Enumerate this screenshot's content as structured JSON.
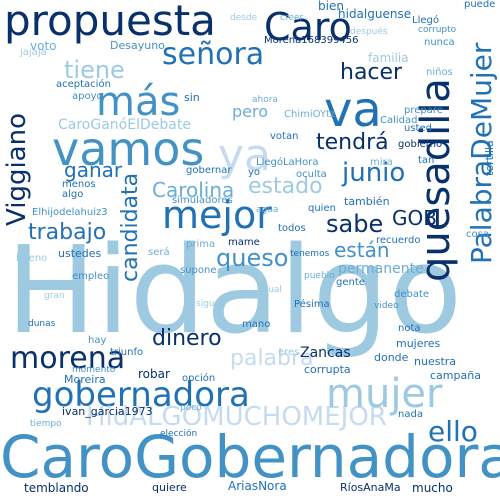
{
  "palette": {
    "darkest": "#08306b",
    "dark": "#0b4f8c",
    "mid": "#2171b5",
    "medium": "#4292c6",
    "light": "#6baed6",
    "lighter": "#9ecae1",
    "pale": "#c6dbef"
  },
  "words": {
    "hidalgo": "Hidalgo",
    "carogobernadora": "CaroGobernadora",
    "propuesta": "propuesta",
    "vamos": "vamos",
    "caro": "Caro",
    "va": "va",
    "ya": "ya",
    "senora": "señora",
    "mas": "más",
    "mejor": "mejor",
    "quesadilla": "quesadilla",
    "palabradeMujer": "PalabraDeMujer",
    "gobernadora": "gobernadora",
    "hidalgomuchomejor": "HidALGOMUCHOMEJOR",
    "mujer": "mujer",
    "morena": "morena",
    "hacer": "hacer",
    "tendra": "tendrá",
    "sabe": "sabe",
    "junio": "junio",
    "estado": "estado",
    "trabajo": "trabajo",
    "queso": "queso",
    "carolina": "Carolina",
    "candidata": "candidata",
    "viggiano": "Viggiano",
    "ganar": "ganar",
    "dinero": "dinero",
    "palabra": "palabra",
    "ello": "ello",
    "gob": "GOB",
    "estan": "están",
    "tiene": "tiene",
    "elhijodelahuiz3": "Elhijodelahuiz3",
    "caroganoeldebate": "CaroGanóElDebate",
    "permanente": "permanente",
    "temblando": "temblando",
    "mucho": "mucho",
    "ariasnora": "AriasNora",
    "riosananma": "RíosAnaMa",
    "ivan_garcia1973": "ivan_garcia1973",
    "hidalguense": "hidalguense",
    "bien": "bien",
    "morena168": "Morena168399456",
    "desayuno": "Desayuno",
    "voto": "voto",
    "pero": "pero",
    "familia": "familia",
    "chimiotyt": "ChimiOYtz",
    "llegolahora": "LlegóLaHora",
    "zancas": "Zancas",
    "nada": "nada",
    "todos": "todos",
    "tambien": "también",
    "menos": "menos",
    "robar": "robar",
    "dunas": "dunas",
    "mujeres": "mujeres",
    "campana": "campaña",
    "nuestra": "nuestra",
    "donde": "donde",
    "gente": "gente",
    "debate": "debate",
    "prepare": "prepare",
    "recuerdo": "recuerdo",
    "empleo": "empleo",
    "mano": "mano",
    "opcion": "opción",
    "triunfo": "triunfo",
    "quiere": "quiere",
    "moreira": "Moreira",
    "gobernar": "gobernar",
    "acepcion": "aceptación",
    "simuladores": "simuladores",
    "quien": "quien",
    "llego": "Llegó",
    "calidad": "Calidad",
    "pesima": "Pésima",
    "corrupta": "corrupta",
    "mame": "mame",
    "usted": "usted",
    "apoyo": "apoyo",
    "nunca": "nunca",
    "ninos": "niños",
    "jajaja": "jajaja",
    "pueblo": "pueblo",
    "votan": "votan",
    "ahora": "ahora",
    "ustedes": "ustedes",
    "eres": "eres",
    "sera": "será",
    "bueno": "bueno",
    "creer": "creer",
    "tenemos": "tenemos",
    "oculta": "oculta",
    "gobierno": "gobierno",
    "tortilla": "tortilla",
    "prima": "prima",
    "algo": "algo",
    "supone": "supone",
    "nota": "nota",
    "cosa": "cosa",
    "video": "video",
    "tiempo": "tiempo",
    "momento": "momento",
    "eleccion": "elección",
    "puede": "puede",
    "corrupto": "corrupto",
    "desde": "desde",
    "despues": "después",
    "mira": "mira",
    "agua": "agua",
    "tan": "tan",
    "igual": "igual",
    "poco": "poco",
    "sigue": "sigue",
    "gran": "gran",
    "hay": "hay",
    "sin": "sin",
    "yo": "yo"
  }
}
